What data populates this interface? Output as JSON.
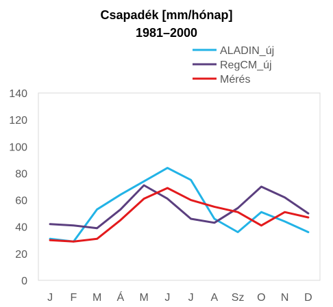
{
  "chart_data": {
    "type": "line",
    "title": "Csapadék  [mm/hónap]",
    "subtitle": "1981–2000",
    "categories": [
      "J",
      "F",
      "M",
      "Á",
      "M",
      "J",
      "J",
      "A",
      "Sz",
      "O",
      "N",
      "D"
    ],
    "ylim": [
      0,
      140
    ],
    "yticks": [
      "0",
      "20",
      "40",
      "60",
      "80",
      "100",
      "120",
      "140"
    ],
    "grid": false,
    "legend_position": "top-right",
    "series": [
      {
        "name": "ALADIN_új",
        "color": "#22B3E6",
        "values": [
          31,
          29,
          53,
          64,
          74,
          84,
          75,
          46,
          36,
          51,
          44,
          36
        ]
      },
      {
        "name": "RegCM_új",
        "color": "#5B3F7F",
        "values": [
          42,
          41,
          39,
          53,
          71,
          61,
          46,
          43,
          54,
          70,
          62,
          50
        ]
      },
      {
        "name": "Mérés",
        "color": "#E31A1C",
        "values": [
          30,
          29,
          31,
          45,
          61,
          69,
          60,
          55,
          51,
          41,
          51,
          47
        ]
      }
    ]
  }
}
